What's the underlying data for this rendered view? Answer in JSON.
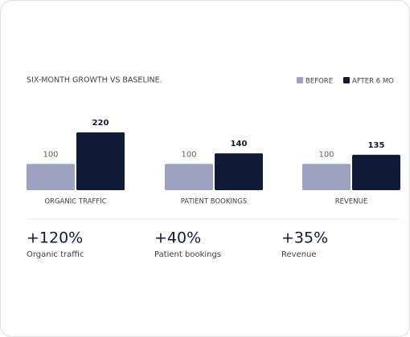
{
  "chart_data": {
    "type": "bar",
    "title": "SIX-MONTH GROWTH VS BASELINE.",
    "categories": [
      "ORGANIC TRAFFIC",
      "PATIENT BOOKINGS",
      "REVENUE"
    ],
    "series": [
      {
        "name": "BEFORE",
        "color": "#9ba3c1",
        "values": [
          100,
          100,
          100
        ]
      },
      {
        "name": "AFTER 6 MO",
        "color": "#111a36",
        "values": [
          220,
          140,
          135
        ]
      }
    ]
  },
  "stats": [
    {
      "value": "+120%",
      "label": "Organic traffic"
    },
    {
      "value": "+40%",
      "label": "Patient bookings"
    },
    {
      "value": "+35%",
      "label": "Revenue"
    }
  ]
}
